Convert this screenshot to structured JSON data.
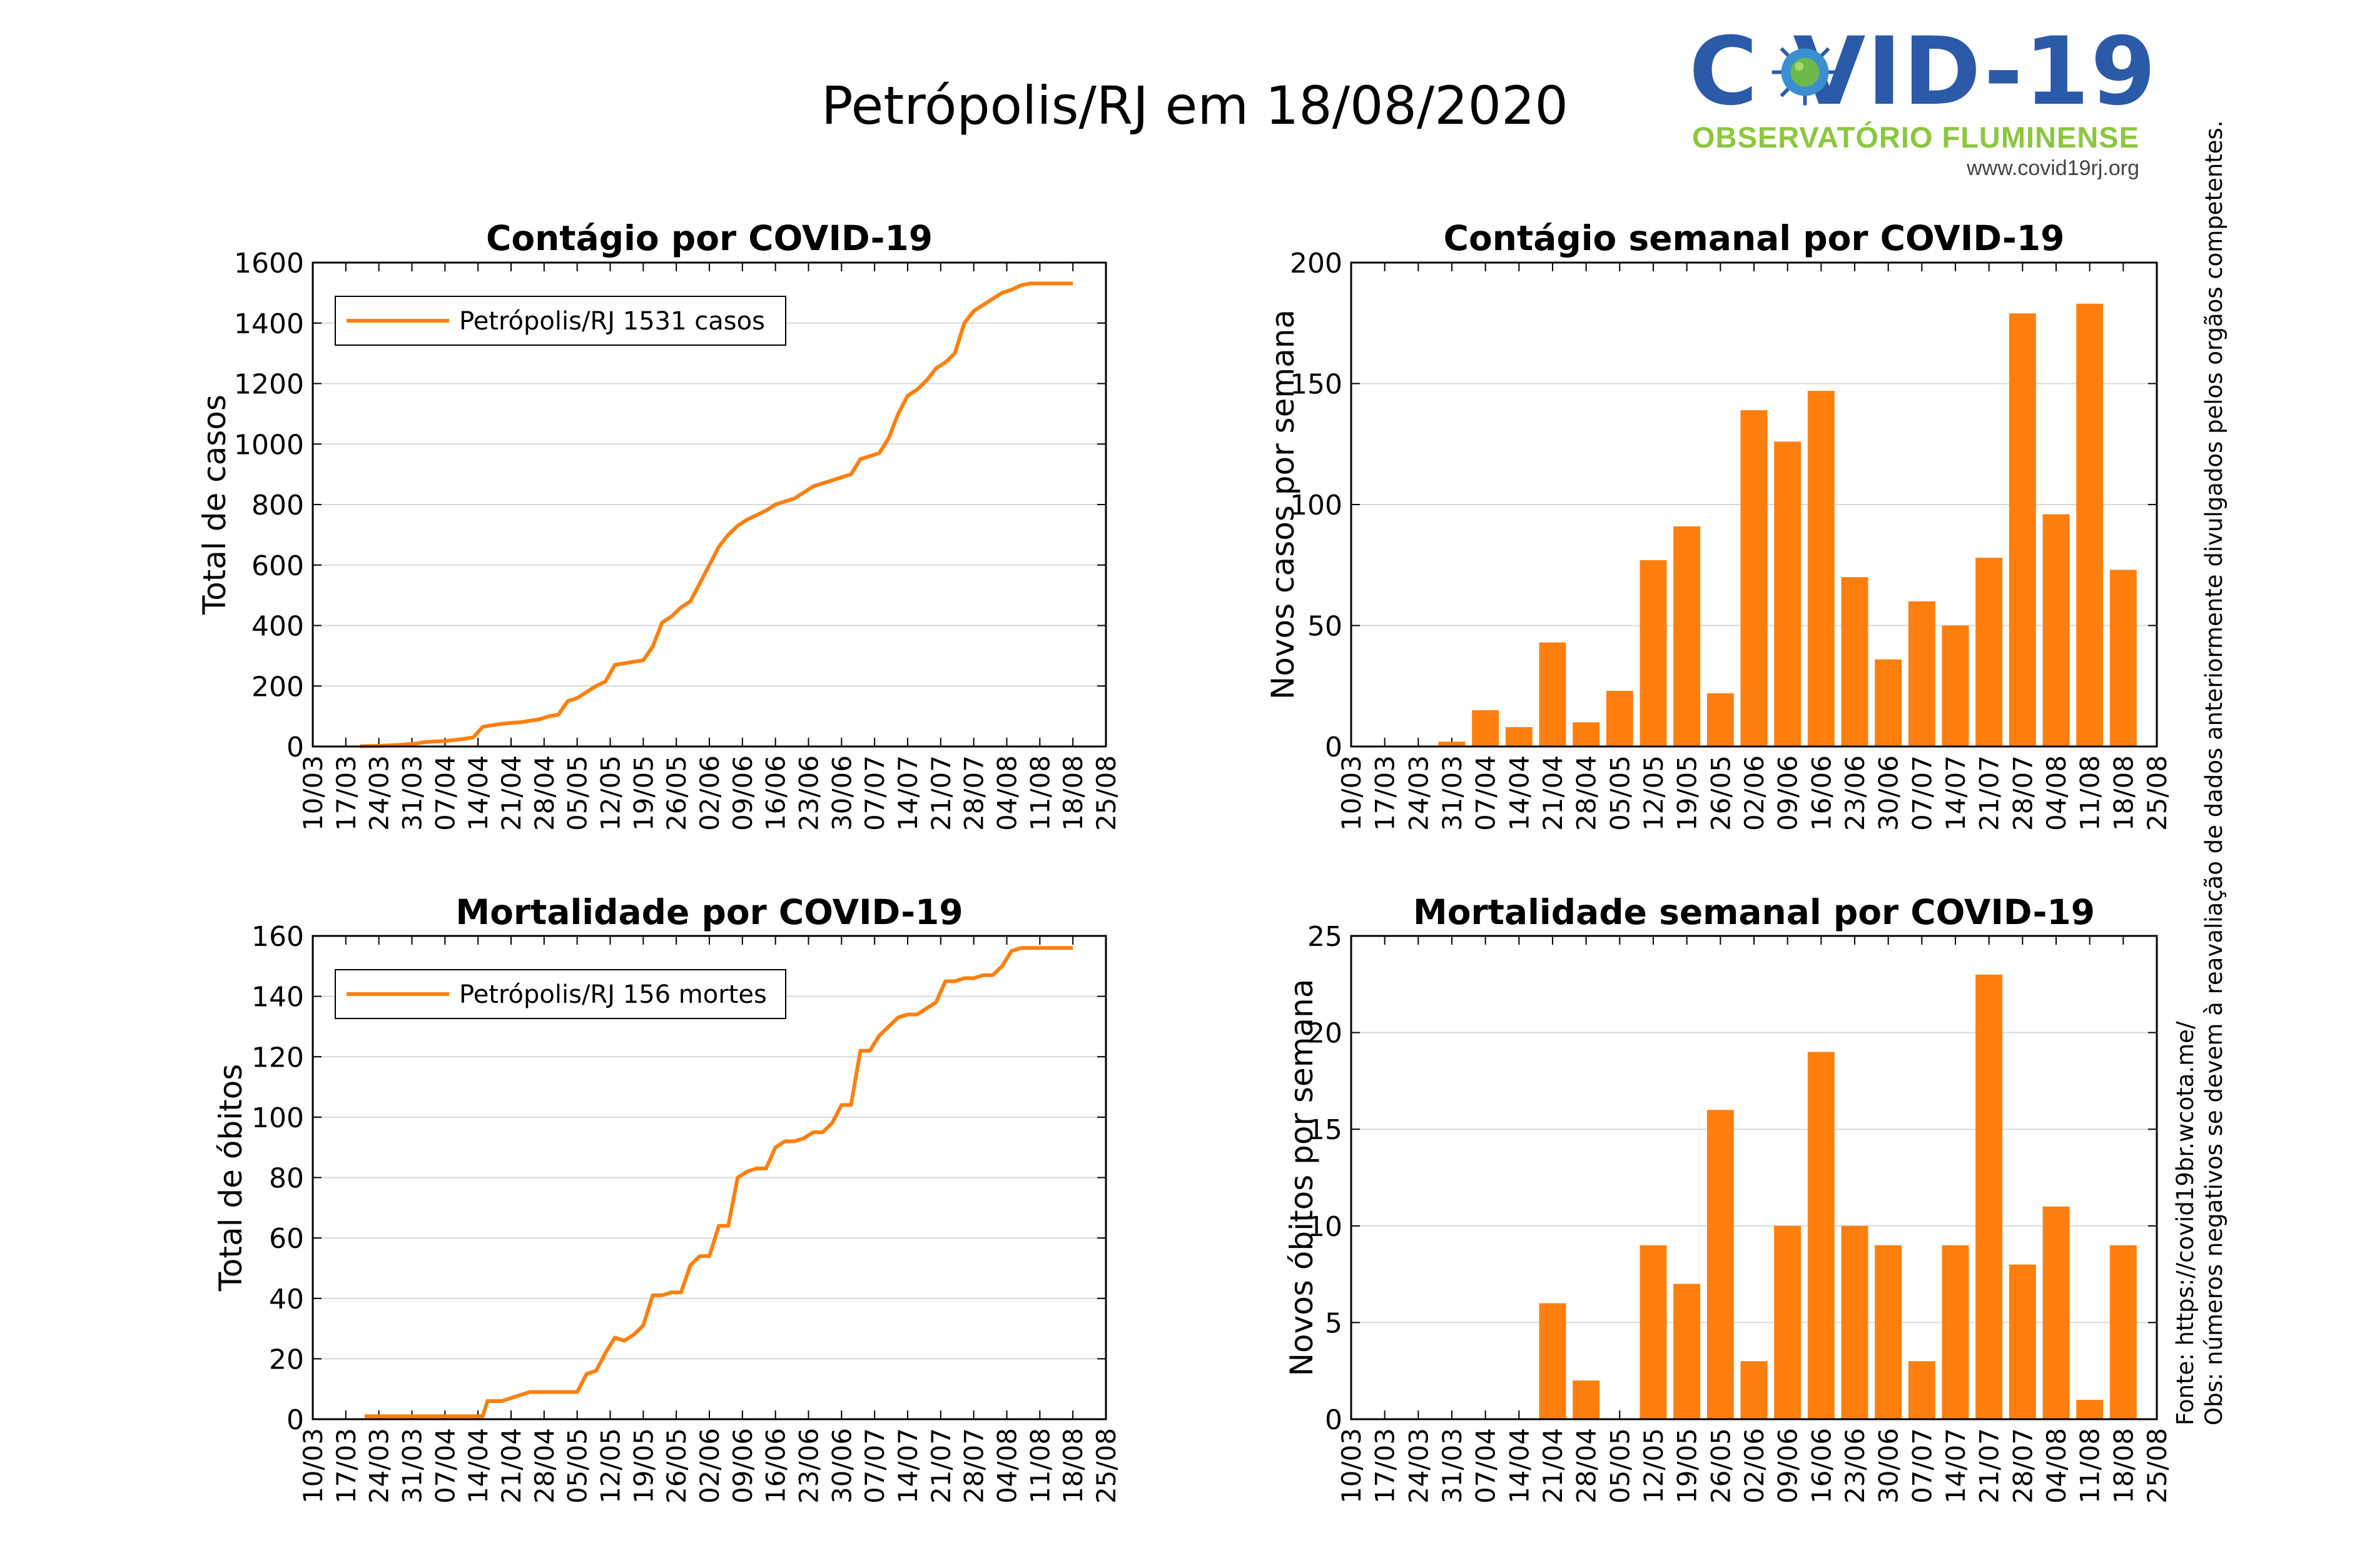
{
  "page": {
    "title": "Petrópolis/RJ em 18/08/2020"
  },
  "logo": {
    "main_text": "C  VID-19",
    "sub_text": "OBSERVATÓRIO FLUMINENSE",
    "url": "www.covid19rj.org",
    "icon": "virus-icon"
  },
  "side_note": {
    "source": "Fonte: https://covid19br.wcota.me/",
    "obs": "Obs: números negativos se devem à reavaliação de dados anteriormente divulgados pelos orgãos competentes."
  },
  "colors": {
    "series": "#ff7f0e",
    "grid": "#d9d9d9",
    "logo_blue": "#2b5aa8",
    "logo_green": "#8cc63f"
  },
  "chart_data": [
    {
      "id": "cases_cumulative",
      "type": "line",
      "title": "Contágio por COVID-19",
      "xlabel": "",
      "ylabel": "Total de casos",
      "xticks": [
        "10/03",
        "17/03",
        "24/03",
        "31/03",
        "07/04",
        "14/04",
        "21/04",
        "28/04",
        "05/05",
        "12/05",
        "19/05",
        "26/05",
        "02/06",
        "09/06",
        "16/06",
        "23/06",
        "30/06",
        "07/07",
        "14/07",
        "21/07",
        "28/07",
        "04/08",
        "11/08",
        "18/08",
        "25/08"
      ],
      "xlim": [
        0,
        168
      ],
      "ylim": [
        0,
        1600
      ],
      "yticks": [
        0,
        200,
        400,
        600,
        800,
        1000,
        1200,
        1400,
        1600
      ],
      "grid": true,
      "legend": "top-left",
      "series": [
        {
          "name": "Petrópolis/RJ  1531 casos",
          "x": [
            10,
            14,
            18,
            22,
            24,
            28,
            32,
            34,
            36,
            38,
            40,
            42,
            44,
            46,
            48,
            50,
            52,
            54,
            56,
            58,
            60,
            62,
            64,
            66,
            68,
            70,
            72,
            74,
            76,
            78,
            80,
            82,
            84,
            86,
            88,
            90,
            92,
            94,
            96,
            98,
            100,
            102,
            104,
            106,
            108,
            110,
            112,
            114,
            116,
            118,
            120,
            122,
            124,
            126,
            128,
            130,
            132,
            134,
            136,
            138,
            140,
            142,
            144,
            146,
            148,
            150,
            152,
            154,
            156,
            158,
            160,
            161
          ],
          "y": [
            1,
            2,
            5,
            10,
            15,
            18,
            25,
            30,
            65,
            70,
            75,
            78,
            80,
            85,
            90,
            100,
            105,
            150,
            160,
            180,
            200,
            215,
            270,
            275,
            280,
            285,
            330,
            410,
            430,
            460,
            480,
            540,
            600,
            660,
            700,
            730,
            750,
            765,
            780,
            800,
            810,
            820,
            840,
            860,
            870,
            880,
            890,
            900,
            950,
            960,
            970,
            1020,
            1100,
            1160,
            1180,
            1210,
            1250,
            1270,
            1300,
            1400,
            1440,
            1460,
            1480,
            1500,
            1510,
            1525,
            1531,
            1531,
            1531,
            1531,
            1531,
            1531
          ]
        }
      ]
    },
    {
      "id": "cases_weekly",
      "type": "bar",
      "title": "Contágio semanal por COVID-19",
      "xlabel": "",
      "ylabel": "Novos casos por semana",
      "categories": [
        "31/03",
        "07/04",
        "14/04",
        "21/04",
        "28/04",
        "05/05",
        "12/05",
        "19/05",
        "26/05",
        "02/06",
        "09/06",
        "16/06",
        "23/06",
        "30/06",
        "07/07",
        "14/07",
        "21/07",
        "28/07",
        "04/08",
        "11/08",
        "18/08"
      ],
      "values": [
        2,
        15,
        8,
        43,
        10,
        23,
        77,
        91,
        22,
        139,
        126,
        147,
        70,
        36,
        60,
        50,
        78,
        179,
        96,
        183,
        73
      ],
      "xticks": [
        "10/03",
        "17/03",
        "24/03",
        "31/03",
        "07/04",
        "14/04",
        "21/04",
        "28/04",
        "05/05",
        "12/05",
        "19/05",
        "26/05",
        "02/06",
        "09/06",
        "16/06",
        "23/06",
        "30/06",
        "07/07",
        "14/07",
        "21/07",
        "28/07",
        "04/08",
        "11/08",
        "18/08",
        "25/08"
      ],
      "ylim": [
        0,
        200
      ],
      "yticks": [
        0,
        50,
        100,
        150,
        200
      ],
      "grid": true
    },
    {
      "id": "deaths_cumulative",
      "type": "line",
      "title": "Mortalidade por COVID-19",
      "xlabel": "",
      "ylabel": "Total de óbitos",
      "xticks": [
        "10/03",
        "17/03",
        "24/03",
        "31/03",
        "07/04",
        "14/04",
        "21/04",
        "28/04",
        "05/05",
        "12/05",
        "19/05",
        "26/05",
        "02/06",
        "09/06",
        "16/06",
        "23/06",
        "30/06",
        "07/07",
        "14/07",
        "21/07",
        "28/07",
        "04/08",
        "11/08",
        "18/08",
        "25/08"
      ],
      "xlim": [
        0,
        168
      ],
      "ylim": [
        0,
        160
      ],
      "yticks": [
        0,
        20,
        40,
        60,
        80,
        100,
        120,
        140,
        160
      ],
      "grid": true,
      "legend": "top-left",
      "series": [
        {
          "name": "Petrópolis/RJ  156 mortes",
          "x": [
            11,
            20,
            30,
            36,
            37,
            40,
            44,
            46,
            48,
            52,
            56,
            58,
            60,
            62,
            64,
            66,
            68,
            70,
            72,
            74,
            76,
            78,
            80,
            82,
            84,
            86,
            88,
            90,
            92,
            94,
            96,
            98,
            100,
            102,
            104,
            106,
            108,
            110,
            112,
            114,
            116,
            118,
            120,
            122,
            124,
            126,
            128,
            130,
            132,
            134,
            136,
            138,
            140,
            142,
            144,
            146,
            148,
            150,
            152,
            154,
            156,
            158,
            160,
            161
          ],
          "y": [
            1,
            1,
            1,
            1,
            6,
            6,
            8,
            9,
            9,
            9,
            9,
            15,
            16,
            22,
            27,
            26,
            28,
            31,
            41,
            41,
            42,
            42,
            51,
            54,
            54,
            64,
            64,
            80,
            82,
            83,
            83,
            90,
            92,
            92,
            93,
            95,
            95,
            98,
            104,
            104,
            122,
            122,
            127,
            130,
            133,
            134,
            134,
            136,
            138,
            145,
            145,
            146,
            146,
            147,
            147,
            150,
            155,
            156,
            156,
            156,
            156,
            156,
            156,
            156
          ]
        }
      ]
    },
    {
      "id": "deaths_weekly",
      "type": "bar",
      "title": "Mortalidade semanal por COVID-19",
      "xlabel": "",
      "ylabel": "Novos óbitos por semana",
      "categories": [
        "31/03",
        "07/04",
        "14/04",
        "21/04",
        "28/04",
        "05/05",
        "12/05",
        "19/05",
        "26/05",
        "02/06",
        "09/06",
        "16/06",
        "23/06",
        "30/06",
        "07/07",
        "14/07",
        "21/07",
        "28/07",
        "04/08",
        "11/08",
        "18/08"
      ],
      "values": [
        0,
        0,
        0,
        6,
        2,
        0,
        9,
        7,
        16,
        3,
        10,
        19,
        10,
        9,
        3,
        9,
        23,
        8,
        11,
        1,
        9
      ],
      "xticks": [
        "10/03",
        "17/03",
        "24/03",
        "31/03",
        "07/04",
        "14/04",
        "21/04",
        "28/04",
        "05/05",
        "12/05",
        "19/05",
        "26/05",
        "02/06",
        "09/06",
        "16/06",
        "23/06",
        "30/06",
        "07/07",
        "14/07",
        "21/07",
        "28/07",
        "04/08",
        "11/08",
        "18/08",
        "25/08"
      ],
      "ylim": [
        0,
        25
      ],
      "yticks": [
        0,
        5,
        10,
        15,
        20,
        25
      ],
      "grid": true
    }
  ]
}
